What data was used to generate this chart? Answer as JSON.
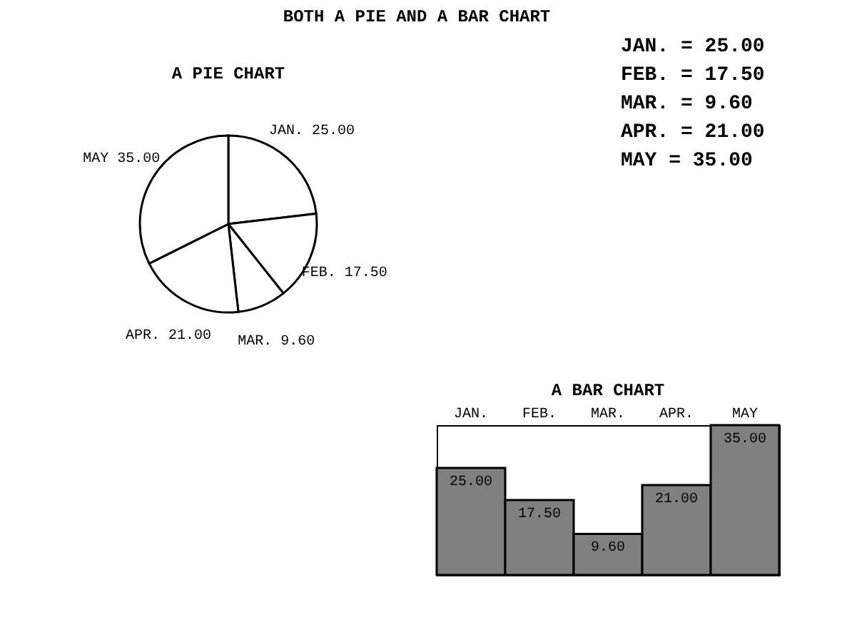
{
  "chart_data": [
    {
      "type": "other",
      "title": "BOTH A PIE AND A BAR CHART",
      "annotations": [
        "JAN. = 25.00",
        "FEB. = 17.50",
        "MAR. =  9.60",
        "APR. = 21.00",
        "MAY  = 35.00"
      ]
    },
    {
      "type": "pie",
      "title": "A PIE CHART",
      "categories": [
        "JAN.",
        "FEB.",
        "MAR.",
        "APR.",
        "MAY"
      ],
      "values": [
        25,
        17.5,
        9.6,
        21,
        35
      ],
      "value_labels": [
        "25.00",
        "17.50",
        "9.60",
        "21.00",
        "35.00"
      ],
      "colors": [
        "#ffffff",
        "#ffffff",
        "#ffffff",
        "#ffffff",
        "#ffffff"
      ]
    },
    {
      "type": "bar",
      "title": "A BAR CHART",
      "categories": [
        "JAN.",
        "FEB.",
        "MAR.",
        "APR.",
        "MAY"
      ],
      "values": [
        25,
        17.5,
        9.6,
        21,
        35
      ],
      "value_labels": [
        "25.00",
        "17.50",
        "9.60",
        "21.00",
        "35.00"
      ],
      "color": "#808080"
    }
  ]
}
